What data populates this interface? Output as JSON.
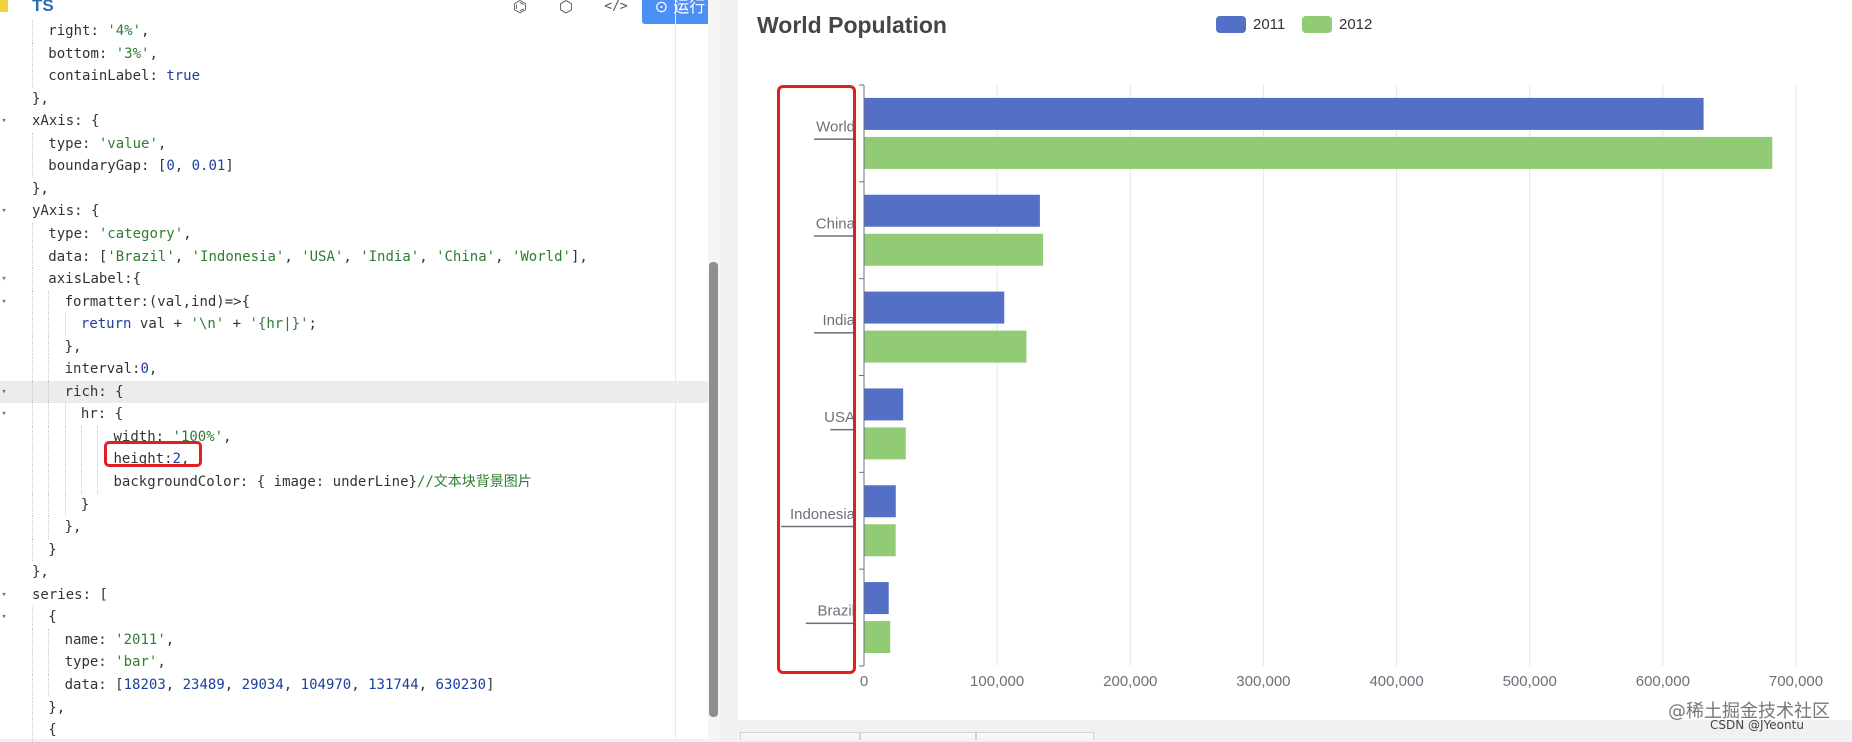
{
  "editor": {
    "lang_label": "TS",
    "toolbar_icons": [
      "codesandbox-icon",
      "cube-icon",
      "code-icon"
    ],
    "run_button": {
      "icon": "play-circle-icon",
      "label": "运行"
    },
    "active_line": 16,
    "lines": [
      {
        "indent": 1,
        "text": "right: '4%',",
        "fold": false
      },
      {
        "indent": 1,
        "text": "bottom: '3%',",
        "fold": false
      },
      {
        "indent": 1,
        "text": "containLabel: true",
        "fold": false
      },
      {
        "indent": 0,
        "text": "},",
        "fold": false
      },
      {
        "indent": 0,
        "text": "xAxis: {",
        "fold": true
      },
      {
        "indent": 1,
        "text": "type: 'value',",
        "fold": false
      },
      {
        "indent": 1,
        "text": "boundaryGap: [0, 0.01]",
        "fold": false
      },
      {
        "indent": 0,
        "text": "},",
        "fold": false
      },
      {
        "indent": 0,
        "text": "yAxis: {",
        "fold": true
      },
      {
        "indent": 1,
        "text": "type: 'category',",
        "fold": false
      },
      {
        "indent": 1,
        "text": "data: ['Brazil', 'Indonesia', 'USA', 'India', 'China', 'World'],",
        "fold": false
      },
      {
        "indent": 1,
        "text": "axisLabel:{",
        "fold": true
      },
      {
        "indent": 2,
        "text": "formatter:(val,ind)=>{",
        "fold": true
      },
      {
        "indent": 3,
        "text": "return val + '\\n' + '{hr|}';",
        "fold": false
      },
      {
        "indent": 2,
        "text": "},",
        "fold": false
      },
      {
        "indent": 2,
        "text": "interval:0,",
        "fold": false
      },
      {
        "indent": 2,
        "text": "rich: {",
        "fold": true
      },
      {
        "indent": 3,
        "text": "hr: {",
        "fold": true
      },
      {
        "indent": 5,
        "text": "width: '100%',",
        "fold": false
      },
      {
        "indent": 5,
        "text": "height:2,",
        "fold": false
      },
      {
        "indent": 5,
        "text": "backgroundColor: { image: underLine}//文本块背景图片",
        "fold": false
      },
      {
        "indent": 3,
        "text": "}",
        "fold": false
      },
      {
        "indent": 2,
        "text": "},",
        "fold": false
      },
      {
        "indent": 1,
        "text": "}",
        "fold": false
      },
      {
        "indent": 0,
        "text": "},",
        "fold": false
      },
      {
        "indent": 0,
        "text": "series: [",
        "fold": true
      },
      {
        "indent": 1,
        "text": "{",
        "fold": true
      },
      {
        "indent": 2,
        "text": "name: '2011',",
        "fold": false
      },
      {
        "indent": 2,
        "text": "type: 'bar',",
        "fold": false
      },
      {
        "indent": 2,
        "text": "data: [18203, 23489, 29034, 104970, 131744, 630230]",
        "fold": false
      },
      {
        "indent": 1,
        "text": "},",
        "fold": false
      },
      {
        "indent": 1,
        "text": "{",
        "fold": false
      }
    ]
  },
  "chart_data": {
    "type": "bar",
    "orientation": "horizontal",
    "title": "World Population",
    "categories": [
      "Brazil",
      "Indonesia",
      "USA",
      "India",
      "China",
      "World"
    ],
    "series": [
      {
        "name": "2011",
        "color": "#5470c6",
        "values": [
          18203,
          23489,
          29034,
          104970,
          131744,
          630230
        ]
      },
      {
        "name": "2012",
        "color": "#91cc75",
        "values": [
          19325,
          23438,
          31000,
          121594,
          134141,
          681807
        ]
      }
    ],
    "xlim": [
      0,
      700000
    ],
    "x_ticks": [
      "0",
      "100,000",
      "200,000",
      "300,000",
      "400,000",
      "500,000",
      "600,000",
      "700,000"
    ],
    "legend_placement": "top-center",
    "grid": "vertical"
  },
  "watermark": {
    "line1": "@稀土掘金技术社区",
    "line2": "CSDN @JYeontu"
  }
}
